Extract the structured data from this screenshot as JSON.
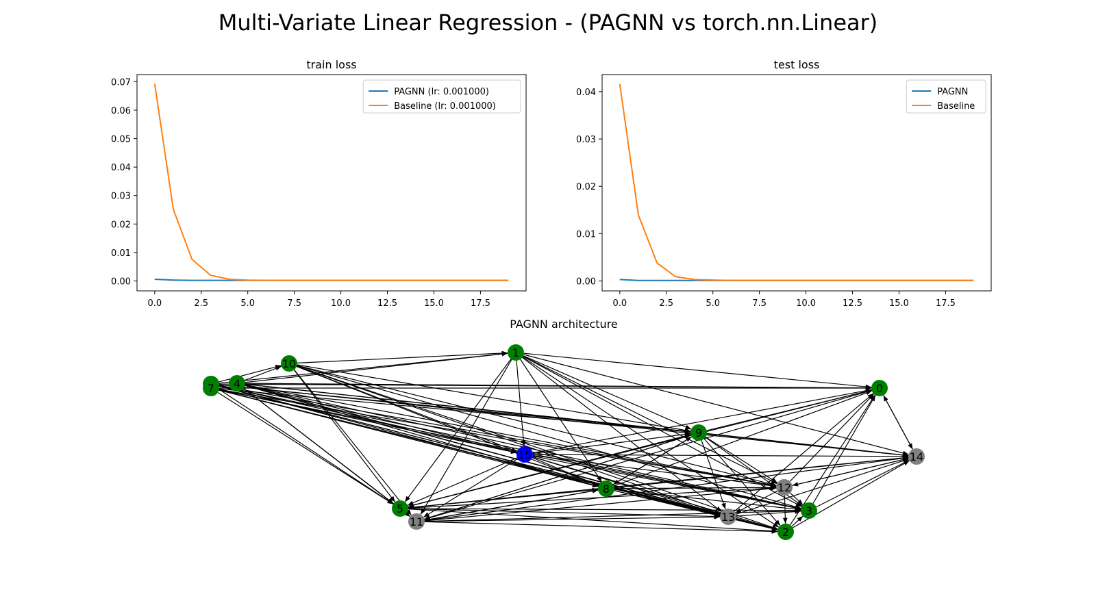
{
  "figure": {
    "title": "Multi-Variate Linear Regression - (PAGNN vs torch.nn.Linear)"
  },
  "colors": {
    "pagnn": "#1f77b4",
    "baseline": "#ff7f0e",
    "node_green": "#008000",
    "node_gray": "#808080",
    "node_blue": "#0000ff",
    "edge": "#000000"
  },
  "chart_data": [
    {
      "type": "line",
      "title": "train loss",
      "x": [
        0,
        1,
        2,
        3,
        4,
        5,
        6,
        7,
        8,
        9,
        10,
        11,
        12,
        13,
        14,
        15,
        16,
        17,
        18,
        19
      ],
      "series": [
        {
          "name": "PAGNN (lr: 0.001000)",
          "values": [
            0.0006,
            0.0003,
            0.0002,
            0.0002,
            0.0002,
            0.0002,
            0.0002,
            0.0002,
            0.0002,
            0.0002,
            0.0002,
            0.0002,
            0.0002,
            0.0002,
            0.0002,
            0.0002,
            0.0002,
            0.0002,
            0.0002,
            0.0002
          ]
        },
        {
          "name": "Baseline (lr: 0.001000)",
          "values": [
            0.0693,
            0.0252,
            0.0076,
            0.002,
            0.0006,
            0.0003,
            0.0002,
            0.0002,
            0.0002,
            0.0002,
            0.0002,
            0.0002,
            0.0002,
            0.0002,
            0.0002,
            0.0002,
            0.0002,
            0.0002,
            0.0002,
            0.0002
          ]
        }
      ],
      "xlim": [
        -0.95,
        19.95
      ],
      "ylim": [
        -0.0035,
        0.0725
      ],
      "xticks": [
        "0.0",
        "2.5",
        "5.0",
        "7.5",
        "10.0",
        "12.5",
        "15.0",
        "17.5"
      ],
      "yticks": [
        "0.00",
        "0.01",
        "0.02",
        "0.03",
        "0.04",
        "0.05",
        "0.06",
        "0.07"
      ],
      "legend": "top-right",
      "grid": false
    },
    {
      "type": "line",
      "title": "test loss",
      "x": [
        0,
        1,
        2,
        3,
        4,
        5,
        6,
        7,
        8,
        9,
        10,
        11,
        12,
        13,
        14,
        15,
        16,
        17,
        18,
        19
      ],
      "series": [
        {
          "name": "PAGNN",
          "values": [
            0.0003,
            0.0001,
            0.0001,
            0.0001,
            0.0001,
            0.0001,
            0.0001,
            0.0001,
            0.0001,
            0.0001,
            0.0001,
            0.0001,
            0.0001,
            0.0001,
            0.0001,
            0.0001,
            0.0001,
            0.0001,
            0.0001,
            0.0001
          ]
        },
        {
          "name": "Baseline",
          "values": [
            0.0416,
            0.0139,
            0.0038,
            0.0009,
            0.0003,
            0.0002,
            0.0001,
            0.0001,
            0.0001,
            0.0001,
            0.0001,
            0.0001,
            0.0001,
            0.0001,
            0.0001,
            0.0001,
            0.0001,
            0.0001,
            0.0001,
            0.0001
          ]
        }
      ],
      "xlim": [
        -0.95,
        19.95
      ],
      "ylim": [
        -0.0021,
        0.0436
      ],
      "xticks": [
        "0.0",
        "2.5",
        "5.0",
        "7.5",
        "10.0",
        "12.5",
        "15.0",
        "17.5"
      ],
      "yticks": [
        "0.00",
        "0.01",
        "0.02",
        "0.03",
        "0.04"
      ],
      "legend": "top-right",
      "grid": false
    }
  ],
  "graph": {
    "title": "PAGNN architecture",
    "nodes": [
      {
        "id": "0",
        "color": "green"
      },
      {
        "id": "1",
        "color": "green"
      },
      {
        "id": "2",
        "color": "green"
      },
      {
        "id": "3",
        "color": "green"
      },
      {
        "id": "4",
        "color": "green"
      },
      {
        "id": "5",
        "color": "green"
      },
      {
        "id": "6",
        "color": "green"
      },
      {
        "id": "7",
        "color": "green"
      },
      {
        "id": "8",
        "color": "green"
      },
      {
        "id": "9",
        "color": "green"
      },
      {
        "id": "10",
        "color": "green"
      },
      {
        "id": "11",
        "color": "gray"
      },
      {
        "id": "12",
        "color": "gray"
      },
      {
        "id": "13",
        "color": "gray"
      },
      {
        "id": "14",
        "color": "gray"
      },
      {
        "id": "15",
        "color": "blue"
      }
    ]
  }
}
